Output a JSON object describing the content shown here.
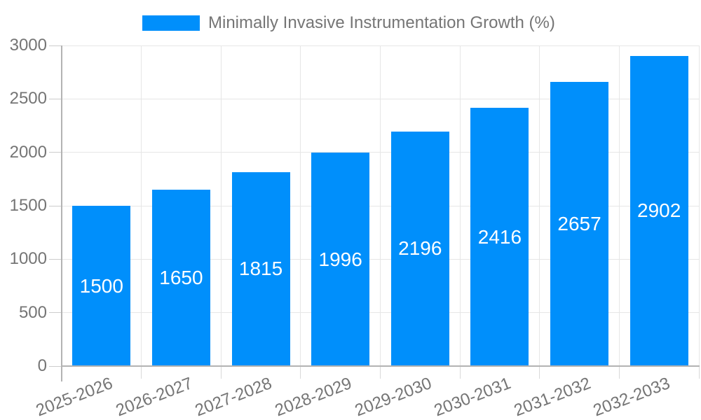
{
  "chart_data": {
    "type": "bar",
    "title": "",
    "legend": {
      "label": "Minimally Invasive Instrumentation Growth (%)",
      "position": "top-center",
      "marker": "rect"
    },
    "categories": [
      "2025-2026",
      "2026-2027",
      "2027-2028",
      "2028-2029",
      "2029-2030",
      "2030-2031",
      "2031-2032",
      "2032-2033"
    ],
    "series": [
      {
        "name": "Minimally Invasive Instrumentation Growth (%)",
        "values": [
          1500,
          1650,
          1815,
          1996,
          2196,
          2416,
          2657,
          2902
        ]
      }
    ],
    "value_labels": [
      "1500",
      "1650",
      "1815",
      "1996",
      "2196",
      "2416",
      "2657",
      "2902"
    ],
    "value_label_position": "inside-center",
    "xlabel": "",
    "ylabel": "",
    "ylim": [
      0,
      3000
    ],
    "yticks": [
      0,
      500,
      1000,
      1500,
      2000,
      2500,
      3000
    ],
    "ytick_labels": [
      "0",
      "500",
      "1000",
      "1500",
      "2000",
      "2500",
      "3000"
    ],
    "grid": "horizontal-and-vertical",
    "colors": {
      "bar": "#008ffb",
      "value_label_text": "#ffffff",
      "axis_text": "#757575",
      "gridline": "#e6e6e6",
      "axis_line": "#b3b3b3",
      "background": "#ffffff"
    }
  }
}
